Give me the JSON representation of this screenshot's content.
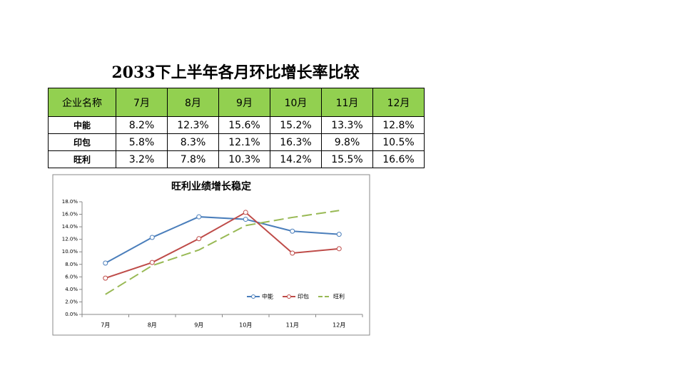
{
  "title": "2033下上半年各月环比增长率比较",
  "table": {
    "header": [
      "企业名称",
      "7月",
      "8月",
      "9月",
      "10月",
      "11月",
      "12月"
    ],
    "rows": [
      [
        "中能",
        "8.2%",
        "12.3%",
        "15.6%",
        "15.2%",
        "13.3%",
        "12.8%"
      ],
      [
        "印包",
        "5.8%",
        "8.3%",
        "12.1%",
        "16.3%",
        "9.8%",
        "10.5%"
      ],
      [
        "旺利",
        "3.2%",
        "7.8%",
        "10.3%",
        "14.2%",
        "15.5%",
        "16.6%"
      ]
    ]
  },
  "chart_data": {
    "type": "line",
    "title": "旺利业绩增长稳定",
    "categories": [
      "7月",
      "8月",
      "9月",
      "10月",
      "11月",
      "12月"
    ],
    "series": [
      {
        "name": "中能",
        "color": "#4a7ebb",
        "values": [
          8.2,
          12.3,
          15.6,
          15.2,
          13.3,
          12.8
        ]
      },
      {
        "name": "印包",
        "color": "#be4b48",
        "values": [
          5.8,
          8.3,
          12.1,
          16.3,
          9.8,
          10.5
        ]
      },
      {
        "name": "旺利",
        "color": "#98b954",
        "values": [
          3.2,
          7.8,
          10.3,
          14.2,
          15.5,
          16.6
        ]
      }
    ],
    "ylim": [
      0,
      18
    ],
    "yticks": [
      {
        "value": 0,
        "label": "0.0%"
      },
      {
        "value": 2,
        "label": "2.0%"
      },
      {
        "value": 4,
        "label": "4.0%"
      },
      {
        "value": 6,
        "label": "6.0%"
      },
      {
        "value": 8,
        "label": "8.0%"
      },
      {
        "value": 10,
        "label": "10.0%"
      },
      {
        "value": 12,
        "label": "12.0%"
      },
      {
        "value": 14,
        "label": "14.0%"
      },
      {
        "value": 16,
        "label": "16.0%"
      },
      {
        "value": 18,
        "label": "18.0%"
      }
    ],
    "grid": false,
    "legend": "lower-right"
  }
}
